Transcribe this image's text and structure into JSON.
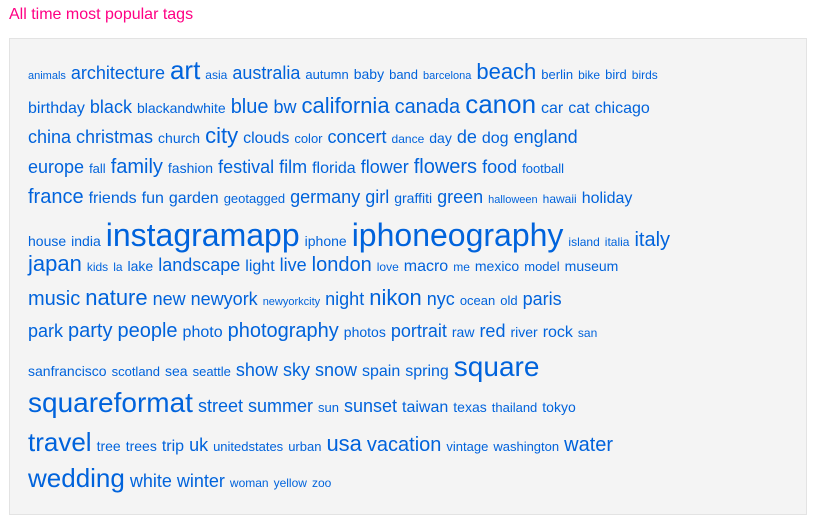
{
  "title": "All time most popular tags",
  "link_color": "#0063dc",
  "title_color": "#ff0084",
  "tags": [
    {
      "t": "animals",
      "w": 1
    },
    {
      "t": "architecture",
      "w": 6
    },
    {
      "t": "art",
      "w": 9
    },
    {
      "t": "asia",
      "w": 2
    },
    {
      "t": "australia",
      "w": 6
    },
    {
      "t": "autumn",
      "w": 3
    },
    {
      "t": "baby",
      "w": 4
    },
    {
      "t": "band",
      "w": 3
    },
    {
      "t": "barcelona",
      "w": 1
    },
    {
      "t": "beach",
      "w": 8
    },
    {
      "t": "berlin",
      "w": 3
    },
    {
      "t": "bike",
      "w": 2
    },
    {
      "t": "bird",
      "w": 3
    },
    {
      "t": "birds",
      "w": 2
    },
    {
      "t": "birthday",
      "w": 5
    },
    {
      "t": "black",
      "w": 6
    },
    {
      "t": "blackandwhite",
      "w": 4
    },
    {
      "t": "blue",
      "w": 7
    },
    {
      "t": "bw",
      "w": 6
    },
    {
      "t": "california",
      "w": 8
    },
    {
      "t": "canada",
      "w": 7
    },
    {
      "t": "canon",
      "w": 9
    },
    {
      "t": "car",
      "w": 5
    },
    {
      "t": "cat",
      "w": 5
    },
    {
      "t": "chicago",
      "w": 5
    },
    {
      "t": "china",
      "w": 6
    },
    {
      "t": "christmas",
      "w": 6
    },
    {
      "t": "church",
      "w": 4
    },
    {
      "t": "city",
      "w": 8
    },
    {
      "t": "clouds",
      "w": 5
    },
    {
      "t": "color",
      "w": 3
    },
    {
      "t": "concert",
      "w": 6
    },
    {
      "t": "dance",
      "w": 2
    },
    {
      "t": "day",
      "w": 4
    },
    {
      "t": "de",
      "w": 6
    },
    {
      "t": "dog",
      "w": 5
    },
    {
      "t": "england",
      "w": 6
    },
    {
      "t": "europe",
      "w": 6
    },
    {
      "t": "fall",
      "w": 3
    },
    {
      "t": "family",
      "w": 7
    },
    {
      "t": "fashion",
      "w": 4
    },
    {
      "t": "festival",
      "w": 6
    },
    {
      "t": "film",
      "w": 6
    },
    {
      "t": "florida",
      "w": 5
    },
    {
      "t": "flower",
      "w": 6
    },
    {
      "t": "flowers",
      "w": 7
    },
    {
      "t": "food",
      "w": 6
    },
    {
      "t": "football",
      "w": 3
    },
    {
      "t": "france",
      "w": 7
    },
    {
      "t": "friends",
      "w": 5
    },
    {
      "t": "fun",
      "w": 5
    },
    {
      "t": "garden",
      "w": 5
    },
    {
      "t": "geotagged",
      "w": 3
    },
    {
      "t": "germany",
      "w": 6
    },
    {
      "t": "girl",
      "w": 6
    },
    {
      "t": "graffiti",
      "w": 4
    },
    {
      "t": "green",
      "w": 6
    },
    {
      "t": "halloween",
      "w": 1
    },
    {
      "t": "hawaii",
      "w": 2
    },
    {
      "t": "holiday",
      "w": 5
    },
    {
      "t": "house",
      "w": 4
    },
    {
      "t": "india",
      "w": 4
    },
    {
      "t": "instagramapp",
      "w": 11
    },
    {
      "t": "iphone",
      "w": 4
    },
    {
      "t": "iphoneography",
      "w": 11
    },
    {
      "t": "island",
      "w": 2
    },
    {
      "t": "italia",
      "w": 2
    },
    {
      "t": "italy",
      "w": 7
    },
    {
      "t": "japan",
      "w": 8
    },
    {
      "t": "kids",
      "w": 2
    },
    {
      "t": "la",
      "w": 2
    },
    {
      "t": "lake",
      "w": 4
    },
    {
      "t": "landscape",
      "w": 6
    },
    {
      "t": "light",
      "w": 5
    },
    {
      "t": "live",
      "w": 6
    },
    {
      "t": "london",
      "w": 7
    },
    {
      "t": "love",
      "w": 2
    },
    {
      "t": "macro",
      "w": 5
    },
    {
      "t": "me",
      "w": 2
    },
    {
      "t": "mexico",
      "w": 4
    },
    {
      "t": "model",
      "w": 3
    },
    {
      "t": "museum",
      "w": 4
    },
    {
      "t": "music",
      "w": 7
    },
    {
      "t": "nature",
      "w": 8
    },
    {
      "t": "new",
      "w": 6
    },
    {
      "t": "newyork",
      "w": 6
    },
    {
      "t": "newyorkcity",
      "w": 1
    },
    {
      "t": "night",
      "w": 6
    },
    {
      "t": "nikon",
      "w": 8
    },
    {
      "t": "nyc",
      "w": 6
    },
    {
      "t": "ocean",
      "w": 3
    },
    {
      "t": "old",
      "w": 3
    },
    {
      "t": "paris",
      "w": 6
    },
    {
      "t": "park",
      "w": 6
    },
    {
      "t": "party",
      "w": 7
    },
    {
      "t": "people",
      "w": 7
    },
    {
      "t": "photo",
      "w": 5
    },
    {
      "t": "photography",
      "w": 7
    },
    {
      "t": "photos",
      "w": 4
    },
    {
      "t": "portrait",
      "w": 6
    },
    {
      "t": "raw",
      "w": 4
    },
    {
      "t": "red",
      "w": 6
    },
    {
      "t": "river",
      "w": 4
    },
    {
      "t": "rock",
      "w": 5
    },
    {
      "t": "san",
      "w": 2
    },
    {
      "t": "sanfrancisco",
      "w": 4
    },
    {
      "t": "scotland",
      "w": 3
    },
    {
      "t": "sea",
      "w": 4
    },
    {
      "t": "seattle",
      "w": 3
    },
    {
      "t": "show",
      "w": 6
    },
    {
      "t": "sky",
      "w": 6
    },
    {
      "t": "snow",
      "w": 6
    },
    {
      "t": "spain",
      "w": 5
    },
    {
      "t": "spring",
      "w": 5
    },
    {
      "t": "square",
      "w": 10
    },
    {
      "t": "squareformat",
      "w": 10
    },
    {
      "t": "street",
      "w": 6
    },
    {
      "t": "summer",
      "w": 6
    },
    {
      "t": "sun",
      "w": 3
    },
    {
      "t": "sunset",
      "w": 6
    },
    {
      "t": "taiwan",
      "w": 5
    },
    {
      "t": "texas",
      "w": 4
    },
    {
      "t": "thailand",
      "w": 3
    },
    {
      "t": "tokyo",
      "w": 4
    },
    {
      "t": "travel",
      "w": 9
    },
    {
      "t": "tree",
      "w": 4
    },
    {
      "t": "trees",
      "w": 4
    },
    {
      "t": "trip",
      "w": 5
    },
    {
      "t": "uk",
      "w": 6
    },
    {
      "t": "unitedstates",
      "w": 3
    },
    {
      "t": "urban",
      "w": 3
    },
    {
      "t": "usa",
      "w": 8
    },
    {
      "t": "vacation",
      "w": 7
    },
    {
      "t": "vintage",
      "w": 3
    },
    {
      "t": "washington",
      "w": 3
    },
    {
      "t": "water",
      "w": 7
    },
    {
      "t": "wedding",
      "w": 9
    },
    {
      "t": "white",
      "w": 6
    },
    {
      "t": "winter",
      "w": 6
    },
    {
      "t": "woman",
      "w": 2
    },
    {
      "t": "yellow",
      "w": 2
    },
    {
      "t": "zoo",
      "w": 2
    }
  ]
}
